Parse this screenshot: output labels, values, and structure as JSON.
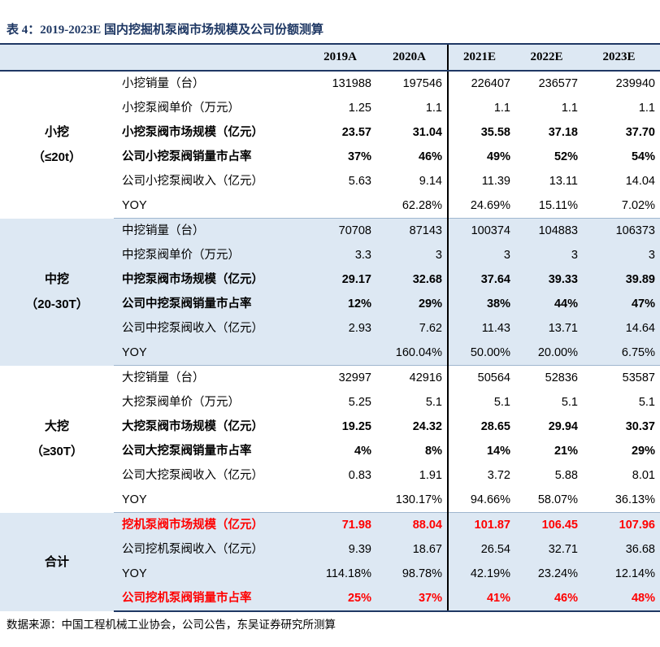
{
  "title": "表 4：2019-2023E 国内挖掘机泵阀市场规模及公司份额测算",
  "columns": [
    "2019A",
    "2020A",
    "2021E",
    "2022E",
    "2023E"
  ],
  "groups": [
    {
      "label_line1": "小挖",
      "label_line2": "（≤20t）",
      "rows": [
        {
          "label": "小挖销量（台）",
          "style": "normal",
          "values": [
            "131988",
            "197546",
            "226407",
            "236577",
            "239940"
          ]
        },
        {
          "label": "小挖泵阀单价（万元）",
          "style": "normal",
          "values": [
            "1.25",
            "1.1",
            "1.1",
            "1.1",
            "1.1"
          ]
        },
        {
          "label": "小挖泵阀市场规模（亿元）",
          "style": "bold",
          "values": [
            "23.57",
            "31.04",
            "35.58",
            "37.18",
            "37.70"
          ]
        },
        {
          "label": "公司小挖泵阀销量市占率",
          "style": "bold",
          "values": [
            "37%",
            "46%",
            "49%",
            "52%",
            "54%"
          ]
        },
        {
          "label": "公司小挖泵阀收入（亿元）",
          "style": "normal",
          "values": [
            "5.63",
            "9.14",
            "11.39",
            "13.11",
            "14.04"
          ]
        },
        {
          "label": "YOY",
          "style": "normal",
          "values": [
            "",
            "62.28%",
            "24.69%",
            "15.11%",
            "7.02%"
          ]
        }
      ]
    },
    {
      "label_line1": "中挖",
      "label_line2": "（20-30T）",
      "rows": [
        {
          "label": "中挖销量（台）",
          "style": "normal",
          "values": [
            "70708",
            "87143",
            "100374",
            "104883",
            "106373"
          ]
        },
        {
          "label": "中挖泵阀单价（万元）",
          "style": "normal",
          "values": [
            "3.3",
            "3",
            "3",
            "3",
            "3"
          ]
        },
        {
          "label": "中挖泵阀市场规模（亿元）",
          "style": "bold",
          "values": [
            "29.17",
            "32.68",
            "37.64",
            "39.33",
            "39.89"
          ]
        },
        {
          "label": "公司中挖泵阀销量市占率",
          "style": "bold",
          "values": [
            "12%",
            "29%",
            "38%",
            "44%",
            "47%"
          ]
        },
        {
          "label": "公司中挖泵阀收入（亿元）",
          "style": "normal",
          "values": [
            "2.93",
            "7.62",
            "11.43",
            "13.71",
            "14.64"
          ]
        },
        {
          "label": "YOY",
          "style": "normal",
          "values": [
            "",
            "160.04%",
            "50.00%",
            "20.00%",
            "6.75%"
          ]
        }
      ]
    },
    {
      "label_line1": "大挖",
      "label_line2": "（≥30T）",
      "rows": [
        {
          "label": "大挖销量（台）",
          "style": "normal",
          "values": [
            "32997",
            "42916",
            "50564",
            "52836",
            "53587"
          ]
        },
        {
          "label": "大挖泵阀单价（万元）",
          "style": "normal",
          "values": [
            "5.25",
            "5.1",
            "5.1",
            "5.1",
            "5.1"
          ]
        },
        {
          "label": "大挖泵阀市场规模（亿元）",
          "style": "bold",
          "values": [
            "19.25",
            "24.32",
            "28.65",
            "29.94",
            "30.37"
          ]
        },
        {
          "label": "公司大挖泵阀销量市占率",
          "style": "bold",
          "values": [
            "4%",
            "8%",
            "14%",
            "21%",
            "29%"
          ]
        },
        {
          "label": "公司大挖泵阀收入（亿元）",
          "style": "normal",
          "values": [
            "0.83",
            "1.91",
            "3.72",
            "5.88",
            "8.01"
          ]
        },
        {
          "label": "YOY",
          "style": "normal",
          "values": [
            "",
            "130.17%",
            "94.66%",
            "58.07%",
            "36.13%"
          ]
        }
      ]
    },
    {
      "label_line1": "合计",
      "label_line2": "",
      "rows": [
        {
          "label": "挖机泵阀市场规模（亿元）",
          "style": "red",
          "values": [
            "71.98",
            "88.04",
            "101.87",
            "106.45",
            "107.96"
          ]
        },
        {
          "label": "公司挖机泵阀收入（亿元）",
          "style": "normal",
          "values": [
            "9.39",
            "18.67",
            "26.54",
            "32.71",
            "36.68"
          ]
        },
        {
          "label": "YOY",
          "style": "normal",
          "values": [
            "114.18%",
            "98.78%",
            "42.19%",
            "23.24%",
            "12.14%"
          ]
        },
        {
          "label": "公司挖机泵阀销量市占率",
          "style": "red",
          "values": [
            "25%",
            "37%",
            "41%",
            "46%",
            "48%"
          ]
        }
      ]
    }
  ],
  "source": "数据来源：中国工程机械工业协会，公司公告，东吴证券研究所测算",
  "colors": {
    "title": "#1f3864",
    "shade": "#dde8f3",
    "highlight": "#ff0000",
    "rule": "#1f3864"
  }
}
